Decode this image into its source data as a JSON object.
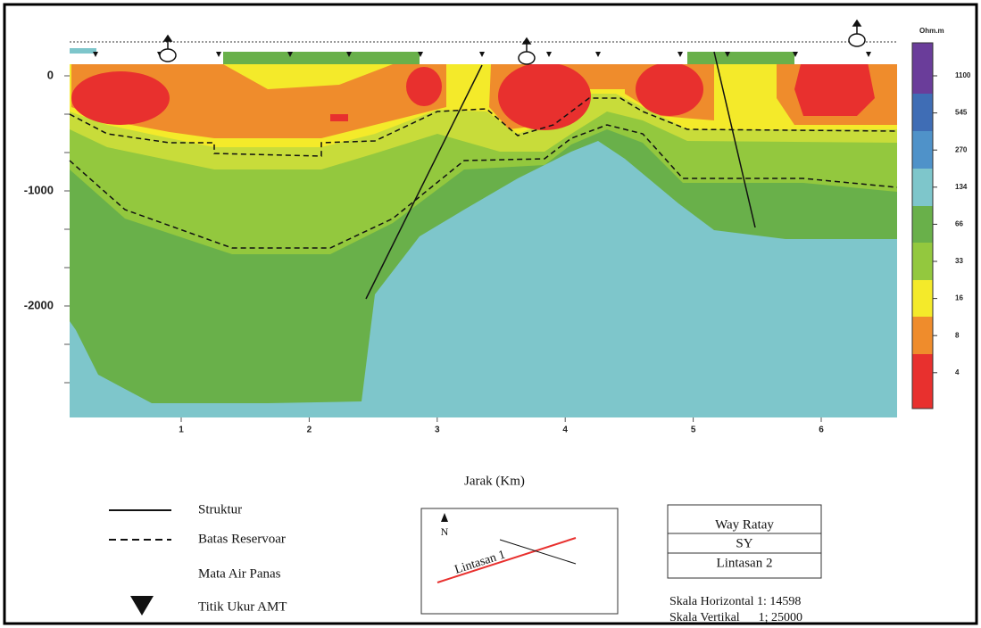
{
  "y_axis": {
    "labels": [
      "0",
      "-1000",
      "-2000"
    ]
  },
  "x_axis": {
    "labels": [
      "1",
      "2",
      "3",
      "4",
      "5",
      "6"
    ],
    "title": "Jarak (Km)"
  },
  "colorbar": {
    "unit": "Ohm.m",
    "labels": [
      "1100",
      "545",
      "270",
      "134",
      "66",
      "33",
      "16",
      "8",
      "4"
    ]
  },
  "legend": {
    "items": [
      "Struktur",
      "Batas Reservoar",
      "Mata Air Panas",
      "Titik Ukur AMT"
    ]
  },
  "map": {
    "north": "N",
    "line_label": "Lintasan 1"
  },
  "info_table": {
    "rows": [
      "Way Ratay",
      "SY",
      "Lintasan 2"
    ]
  },
  "scale": [
    "Skala Horizontal 1: 14598",
    "Skala Vertikal      1; 25000"
  ]
}
